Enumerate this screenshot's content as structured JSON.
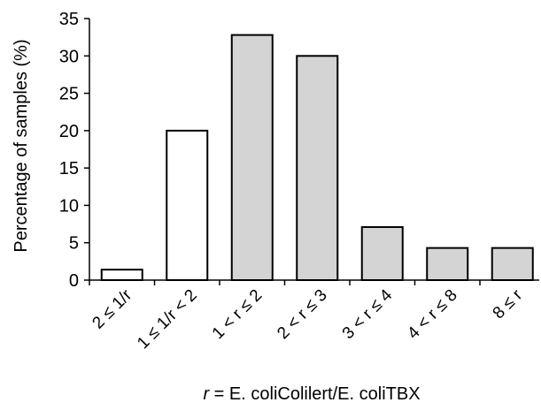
{
  "chart_data": {
    "type": "bar",
    "categories": [
      "2 ≤ 1/r",
      "1 ≤ 1/r < 2",
      "1 < r ≤ 2",
      "2 < r ≤ 3",
      "3 < r ≤ 4",
      "4 < r ≤ 8",
      "8 ≤ r"
    ],
    "values": [
      1.4,
      20,
      32.8,
      30,
      7.1,
      4.3,
      4.3
    ],
    "bar_fills": [
      "#ffffff",
      "#ffffff",
      "#d4d4d4",
      "#d4d4d4",
      "#d4d4d4",
      "#d4d4d4",
      "#d4d4d4"
    ],
    "ylabel": "Percentage of samples (%)",
    "xlabel_var": "r",
    "xlabel_rest": " = E. coliColilert/E. coliTBX",
    "ylim": [
      0,
      35
    ],
    "yticks": [
      "0",
      "5",
      "10",
      "15",
      "20",
      "25",
      "30",
      "35"
    ],
    "grid": false,
    "legend": "none"
  }
}
